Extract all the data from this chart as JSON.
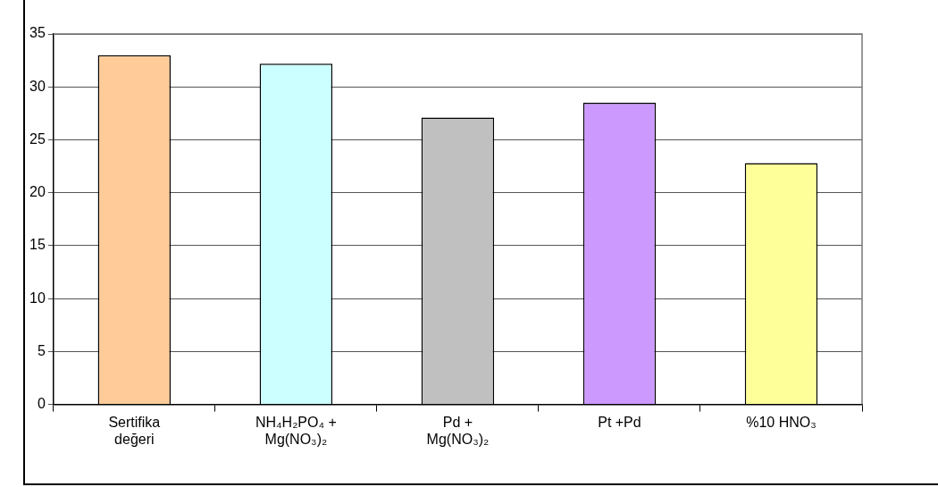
{
  "chart_data": {
    "type": "bar",
    "categories": [
      "Sertifika değeri",
      "NH₄H₂PO₄ + Mg(NO₃)₂",
      "Pd +  Mg(NO₃)₂",
      "Pt +Pd",
      "%10 HNO₃"
    ],
    "values": [
      33.0,
      32.2,
      27.1,
      28.5,
      22.8
    ],
    "colors": [
      "#ffcc99",
      "#ccffff",
      "#c0c0c0",
      "#cc99ff",
      "#ffff99"
    ],
    "ylim": [
      0,
      35
    ],
    "yticks": [
      0,
      5,
      10,
      15,
      20,
      25,
      30,
      35
    ],
    "grid": "y",
    "legend": false
  }
}
